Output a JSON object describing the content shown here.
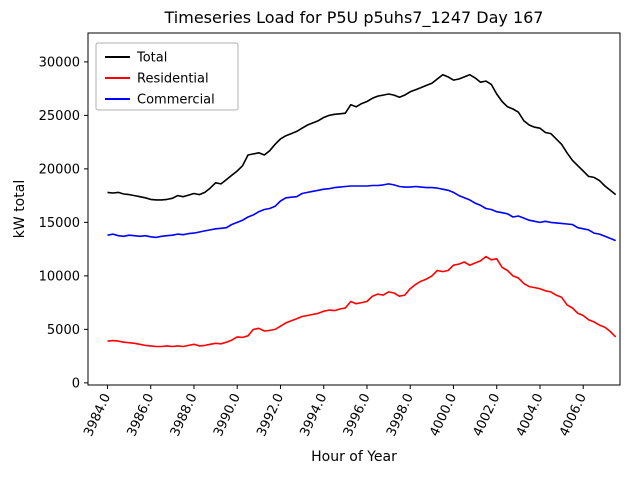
{
  "figure": {
    "title": "Timeseries Load for P5U p5uhs7_1247  Day 167",
    "xlabel": "Hour of Year",
    "ylabel": "kW total"
  },
  "chart_data": {
    "type": "line",
    "title": "Timeseries Load for P5U p5uhs7_1247  Day 167",
    "xlabel": "Hour of Year",
    "ylabel": "kW total",
    "grid": false,
    "legend_position": "upper left",
    "xlim": [
      3983.1,
      4007.7
    ],
    "ylim": [
      -200,
      32700
    ],
    "xticks": [
      3984,
      3986,
      3988,
      3990,
      3992,
      3994,
      3996,
      3998,
      4000,
      4002,
      4004,
      4006
    ],
    "xtick_labels": [
      "3984.0",
      "3986.0",
      "3988.0",
      "3990.0",
      "3992.0",
      "3994.0",
      "3996.0",
      "3998.0",
      "4000.0",
      "4002.0",
      "4004.0",
      "4006.0"
    ],
    "yticks": [
      0,
      5000,
      10000,
      15000,
      20000,
      25000,
      30000
    ],
    "ytick_labels": [
      "0",
      "5000",
      "10000",
      "15000",
      "20000",
      "25000",
      "30000"
    ],
    "x": [
      3984.0,
      3984.25,
      3984.5,
      3984.75,
      3985.0,
      3985.25,
      3985.5,
      3985.75,
      3986.0,
      3986.25,
      3986.5,
      3986.75,
      3987.0,
      3987.25,
      3987.5,
      3987.75,
      3988.0,
      3988.25,
      3988.5,
      3988.75,
      3989.0,
      3989.25,
      3989.5,
      3989.75,
      3990.0,
      3990.25,
      3990.5,
      3990.75,
      3991.0,
      3991.25,
      3991.5,
      3991.75,
      3992.0,
      3992.25,
      3992.5,
      3992.75,
      3993.0,
      3993.25,
      3993.5,
      3993.75,
      3994.0,
      3994.25,
      3994.5,
      3994.75,
      3995.0,
      3995.25,
      3995.5,
      3995.75,
      3996.0,
      3996.25,
      3996.5,
      3996.75,
      3997.0,
      3997.25,
      3997.5,
      3997.75,
      3998.0,
      3998.25,
      3998.5,
      3998.75,
      3999.0,
      3999.25,
      3999.5,
      3999.75,
      4000.0,
      4000.25,
      4000.5,
      4000.75,
      4001.0,
      4001.25,
      4001.5,
      4001.75,
      4002.0,
      4002.25,
      4002.5,
      4002.75,
      4003.0,
      4003.25,
      4003.5,
      4003.75,
      4004.0,
      4004.25,
      4004.5,
      4004.75,
      4005.0,
      4005.25,
      4005.5,
      4005.75,
      4006.0,
      4006.25,
      4006.5,
      4006.75,
      4007.0,
      4007.25,
      4007.5
    ],
    "series": [
      {
        "name": "Total",
        "color": "#000000",
        "values": [
          17800,
          17750,
          17800,
          17650,
          17600,
          17500,
          17400,
          17300,
          17150,
          17100,
          17100,
          17150,
          17250,
          17500,
          17400,
          17550,
          17700,
          17600,
          17800,
          18200,
          18700,
          18600,
          19000,
          19400,
          19800,
          20300,
          21300,
          21400,
          21500,
          21300,
          21700,
          22300,
          22800,
          23100,
          23300,
          23500,
          23800,
          24100,
          24300,
          24500,
          24800,
          25000,
          25100,
          25150,
          25200,
          26000,
          25800,
          26100,
          26300,
          26600,
          26800,
          26900,
          27000,
          26900,
          26700,
          26900,
          27200,
          27400,
          27600,
          27800,
          28000,
          28400,
          28800,
          28600,
          28300,
          28400,
          28600,
          28800,
          28500,
          28100,
          28200,
          27900,
          27000,
          26300,
          25800,
          25600,
          25300,
          24500,
          24100,
          23900,
          23800,
          23400,
          23300,
          22800,
          22300,
          21500,
          20800,
          20300,
          19800,
          19300,
          19200,
          18900,
          18400,
          18000,
          17600
        ]
      },
      {
        "name": "Residential",
        "color": "#ff0000",
        "values": [
          3900,
          3950,
          3900,
          3800,
          3750,
          3700,
          3600,
          3500,
          3450,
          3400,
          3400,
          3450,
          3400,
          3450,
          3400,
          3500,
          3600,
          3450,
          3500,
          3600,
          3700,
          3650,
          3800,
          4000,
          4300,
          4250,
          4400,
          5000,
          5100,
          4850,
          4900,
          5000,
          5300,
          5600,
          5800,
          6000,
          6200,
          6300,
          6400,
          6500,
          6700,
          6800,
          6750,
          6900,
          7000,
          7600,
          7400,
          7500,
          7600,
          8100,
          8300,
          8200,
          8500,
          8400,
          8100,
          8200,
          8800,
          9200,
          9500,
          9700,
          10000,
          10500,
          10400,
          10500,
          11000,
          11100,
          11300,
          11000,
          11200,
          11400,
          11800,
          11500,
          11600,
          10800,
          10500,
          10000,
          9800,
          9300,
          9000,
          8900,
          8800,
          8600,
          8500,
          8200,
          8000,
          7300,
          7000,
          6500,
          6300,
          5900,
          5700,
          5400,
          5200,
          4800,
          4300
        ]
      },
      {
        "name": "Commercial",
        "color": "#0000ff",
        "values": [
          13800,
          13900,
          13750,
          13700,
          13800,
          13750,
          13700,
          13750,
          13650,
          13600,
          13700,
          13750,
          13800,
          13900,
          13850,
          13950,
          14000,
          14100,
          14200,
          14300,
          14400,
          14450,
          14500,
          14800,
          15000,
          15200,
          15500,
          15700,
          16000,
          16200,
          16300,
          16500,
          17000,
          17300,
          17350,
          17400,
          17700,
          17800,
          17900,
          18000,
          18100,
          18150,
          18250,
          18300,
          18350,
          18400,
          18400,
          18400,
          18400,
          18450,
          18450,
          18500,
          18600,
          18500,
          18350,
          18300,
          18300,
          18350,
          18300,
          18250,
          18250,
          18200,
          18100,
          18000,
          17800,
          17500,
          17300,
          17100,
          16800,
          16600,
          16300,
          16200,
          16000,
          15900,
          15800,
          15500,
          15600,
          15400,
          15200,
          15100,
          15000,
          15100,
          15000,
          14950,
          14900,
          14850,
          14800,
          14500,
          14400,
          14300,
          14000,
          13900,
          13700,
          13500,
          13300
        ]
      }
    ]
  }
}
